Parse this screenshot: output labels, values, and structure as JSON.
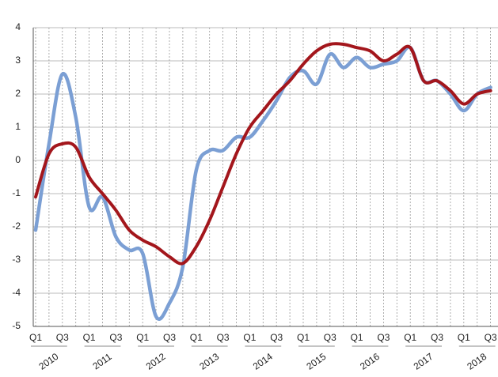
{
  "chart_data": {
    "type": "line",
    "categories": [
      "Q1",
      null,
      "Q3",
      null,
      "Q1",
      null,
      "Q3",
      null,
      "Q1",
      null,
      "Q3",
      null,
      "Q1",
      null,
      "Q3",
      null,
      "Q1",
      null,
      "Q3",
      null,
      "Q1",
      null,
      "Q3",
      null,
      "Q1",
      null,
      "Q3",
      null,
      "Q1",
      null,
      "Q3",
      null,
      "Q1",
      null,
      "Q3"
    ],
    "groups": [
      "2010",
      "2011",
      "2012",
      "2013",
      "2014",
      "2015",
      "2016",
      "2017",
      "2018"
    ],
    "series": [
      {
        "color": "#7b9fd4",
        "values": [
          -2.1,
          0.5,
          2.6,
          1.3,
          -1.4,
          -1.1,
          -2.3,
          -2.7,
          -2.8,
          -4.7,
          -4.3,
          -3.2,
          -0.3,
          0.3,
          0.3,
          0.7,
          0.7,
          1.2,
          1.8,
          2.5,
          2.7,
          2.3,
          3.2,
          2.8,
          3.1,
          2.8,
          2.9,
          3.0,
          3.4,
          2.4,
          2.4,
          2.0,
          1.5,
          2.0,
          2.2
        ]
      },
      {
        "color": "#a3161c",
        "values": [
          -1.1,
          0.2,
          0.5,
          0.4,
          -0.5,
          -1.0,
          -1.5,
          -2.1,
          -2.4,
          -2.6,
          -2.9,
          -3.1,
          -2.6,
          -1.8,
          -0.8,
          0.2,
          1.0,
          1.5,
          2.0,
          2.4,
          2.9,
          3.3,
          3.5,
          3.5,
          3.4,
          3.3,
          3.0,
          3.2,
          3.4,
          2.4,
          2.4,
          2.1,
          1.7,
          2.0,
          2.1
        ]
      }
    ],
    "ylim": [
      -5,
      4
    ],
    "yticks": [
      -5,
      -4,
      -3,
      -2,
      -1,
      0,
      1,
      2,
      3,
      4
    ],
    "grid": true
  }
}
